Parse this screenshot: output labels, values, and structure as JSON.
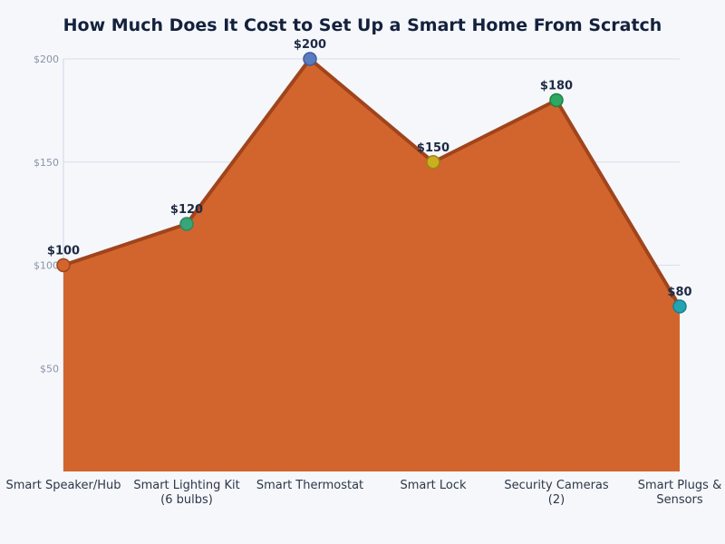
{
  "chart_data": {
    "type": "area",
    "title": "How Much Does It Cost to Set Up a Smart Home From Scratch",
    "xlabel": "",
    "ylabel": "",
    "categories": [
      [
        "Smart Speaker/Hub"
      ],
      [
        "Smart Lighting Kit",
        "(6 bulbs)"
      ],
      [
        "Smart Thermostat"
      ],
      [
        "Smart Lock"
      ],
      [
        "Security Cameras",
        "(2)"
      ],
      [
        "Smart Plugs &",
        "Sensors"
      ]
    ],
    "values": [
      100,
      120,
      200,
      150,
      180,
      80
    ],
    "data_labels": [
      "$100",
      "$120",
      "$200",
      "$150",
      "$180",
      "$80"
    ],
    "ylim": [
      0,
      200
    ],
    "yticks": [
      50,
      100,
      150,
      200
    ],
    "ytick_labels": [
      "$50",
      "$100",
      "$150",
      "$200"
    ],
    "grid": true,
    "colors": {
      "fill": "#d2652d",
      "line": "#a0441c",
      "markers": [
        "#d2652d",
        "#3aa57a",
        "#5b7bbf",
        "#c9b020",
        "#2fa760",
        "#26a3b3"
      ],
      "marker_strokes": [
        "#a0441c",
        "#2a8a5e",
        "#3f5e9e",
        "#9a8416",
        "#1f8048",
        "#1b7f8c"
      ]
    }
  }
}
